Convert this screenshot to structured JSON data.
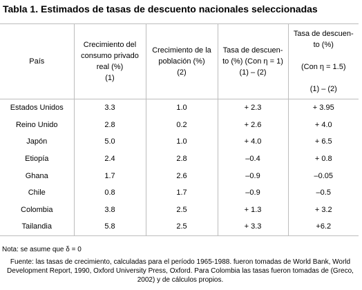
{
  "title": "Tabla 1. Estimados de tasas de descuento nacionales seleccionadas",
  "table": {
    "headers": {
      "country": "País",
      "consumption": [
        "Crecimiento del",
        "consumo privado",
        "real (%)",
        "(1)"
      ],
      "population": [
        "Crecimiento de la",
        "población (%)",
        "(2)"
      ],
      "rate1": [
        "Tasa de descuen-",
        "to (%) (Con η = 1)",
        "(1) – (2)"
      ],
      "rate2": [
        "Tasa de descuen-",
        "to (%)",
        "",
        "(Con η = 1.5)",
        "",
        "(1) – (2)"
      ]
    },
    "rows": [
      {
        "country": "Estados Unidos",
        "consumption": "3.3",
        "population": "1.0",
        "rate1": "+ 2.3",
        "rate2": "+ 3.95"
      },
      {
        "country": "Reino Unido",
        "consumption": "2.8",
        "population": "0.2",
        "rate1": "+ 2.6",
        "rate2": "+ 4.0"
      },
      {
        "country": "Japón",
        "consumption": "5.0",
        "population": "1.0",
        "rate1": "+ 4.0",
        "rate2": "+ 6.5"
      },
      {
        "country": "Etiopía",
        "consumption": "2.4",
        "population": "2.8",
        "rate1": "–0.4",
        "rate2": "+ 0.8"
      },
      {
        "country": "Ghana",
        "consumption": "1.7",
        "population": "2.6",
        "rate1": "–0.9",
        "rate2": "–0.05"
      },
      {
        "country": "Chile",
        "consumption": "0.8",
        "population": "1.7",
        "rate1": "–0.9",
        "rate2": "–0.5"
      },
      {
        "country": "Colombia",
        "consumption": "3.8",
        "population": "2.5",
        "rate1": "+ 1.3",
        "rate2": "+ 3.2"
      },
      {
        "country": "Tailandia",
        "consumption": "5.8",
        "population": "2.5",
        "rate1": "+ 3.3",
        "rate2": "+6.2"
      }
    ]
  },
  "note": "Nota: se asume que δ = 0",
  "source": "Fuente: las tasas de crecimiento, calculadas para el período 1965-1988. fueron tomadas de World Bank, World Development Report, 1990, Oxford University Press, Oxford. Para Colombia las tasas fueron tomadas de (Greco, 2002) y de cálculos propios."
}
